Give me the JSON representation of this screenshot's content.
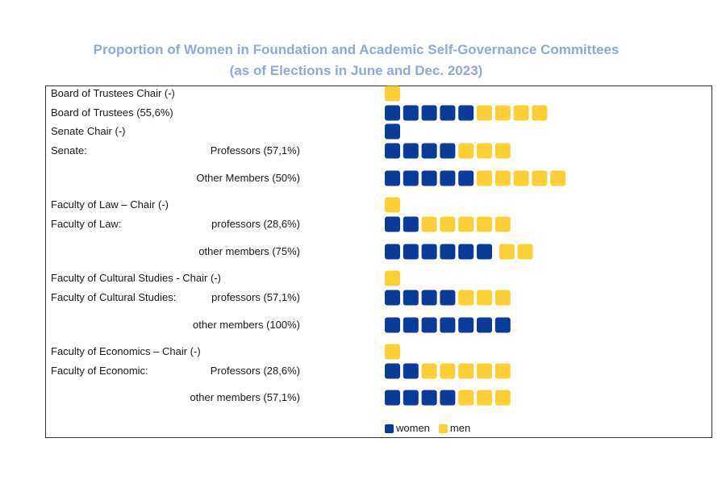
{
  "colors": {
    "women": "#0a3a9a",
    "men": "#fccf34"
  },
  "chart_data": {
    "type": "pictogram",
    "title_line1": "Proportion of Women in Foundation and Academic Self-Governance Committees",
    "title_line2": "(as of Elections in June and Dec. 2023)",
    "legend": [
      {
        "series": "women",
        "label": "women"
      },
      {
        "series": "men",
        "label": "men"
      }
    ],
    "rows": [
      {
        "label": "Board of Trustees Chair (-)",
        "sub": "",
        "women": 0,
        "men": 1
      },
      {
        "label": "Board of Trustees (55,6%)",
        "sub": "",
        "women": 5,
        "men": 4
      },
      {
        "label": "Senate Chair (-)",
        "sub": "",
        "women": 1,
        "men": 0
      },
      {
        "label": "Senate:",
        "sub": "Professors (57,1%)",
        "women": 4,
        "men": 3
      },
      {
        "label": "",
        "sub": "Other Members (50%)",
        "women": 5,
        "men": 5
      },
      {
        "label": "Faculty of Law – Chair (-)",
        "sub": "",
        "women": 0,
        "men": 1
      },
      {
        "label": "Faculty of Law:",
        "sub": "professors (28,6%)",
        "women": 2,
        "men": 5
      },
      {
        "label": "",
        "sub": "other members (75%)",
        "women": 6,
        "men": 2
      },
      {
        "label": "Faculty of Cultural Studies - Chair (-)",
        "sub": "",
        "women": 0,
        "men": 1
      },
      {
        "label": "Faculty of Cultural Studies:",
        "sub": "professors (57,1%)",
        "women": 4,
        "men": 3
      },
      {
        "label": "",
        "sub": "other members (100%)",
        "women": 7,
        "men": 0
      },
      {
        "label": "Faculty of Economics – Chair (-)",
        "sub": "",
        "women": 0,
        "men": 1
      },
      {
        "label": "Faculty of Economic:",
        "sub": "Professors (28,6%)",
        "women": 2,
        "men": 5
      },
      {
        "label": "",
        "sub": "other members (57,1%)",
        "women": 4,
        "men": 3
      }
    ]
  }
}
